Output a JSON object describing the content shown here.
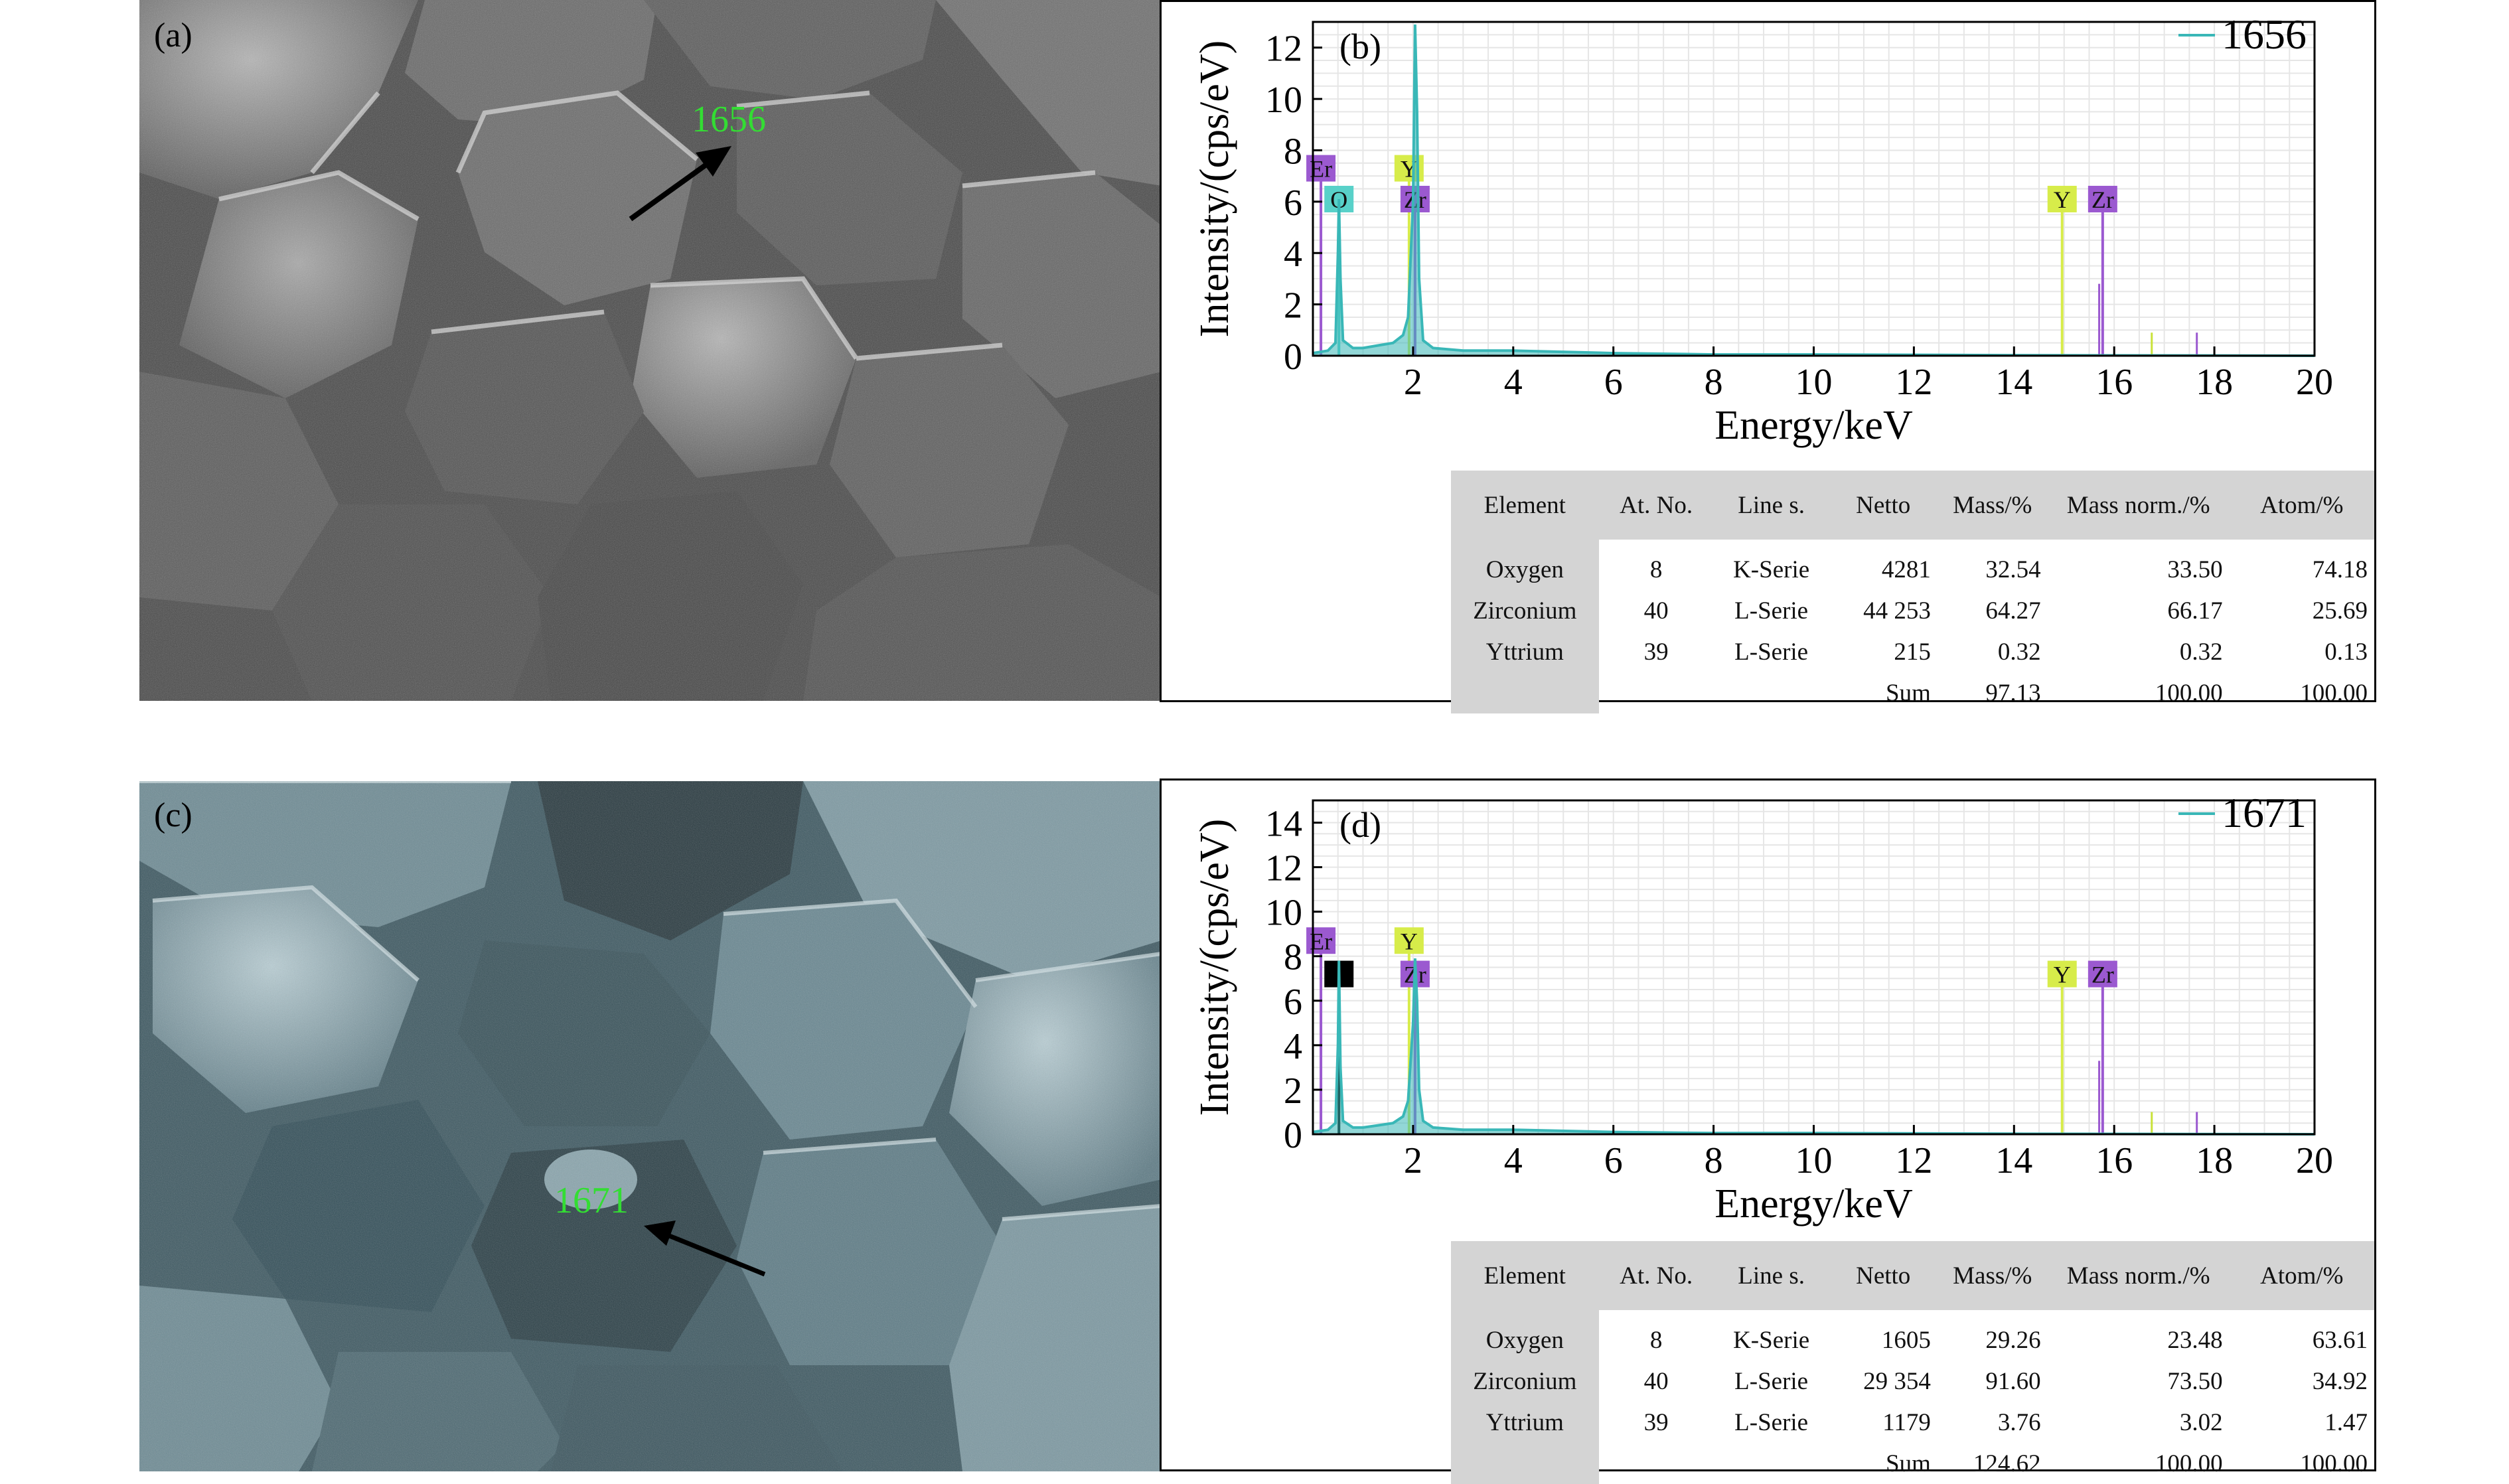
{
  "panels": [
    {
      "sem": {
        "letter": "(a)",
        "spot_label": "1656",
        "label_color": "#33dd33",
        "tint": "gray"
      },
      "eds": {
        "letter": "(b)",
        "legend": "1656",
        "table": {
          "headers": [
            "Element",
            "At. No.",
            "Line s.",
            "Netto",
            "Mass/%",
            "Mass norm./%",
            "Atom/%"
          ],
          "rows": [
            [
              "Oxygen",
              "8",
              "K-Serie",
              "4281",
              "32.54",
              "33.50",
              "74.18"
            ],
            [
              "Zirconium",
              "40",
              "L-Serie",
              "44 253",
              "64.27",
              "66.17",
              "25.69"
            ],
            [
              "Yttrium",
              "39",
              "L-Serie",
              "215",
              "0.32",
              "0.32",
              "0.13"
            ],
            [
              "",
              "",
              "",
              "Sum",
              "97.13",
              "100.00",
              "100.00"
            ]
          ]
        }
      }
    },
    {
      "sem": {
        "letter": "(c)",
        "spot_label": "1671",
        "label_color": "#33dd33",
        "tint": "blue-gray"
      },
      "eds": {
        "letter": "(d)",
        "legend": "1671",
        "table": {
          "headers": [
            "Element",
            "At. No.",
            "Line s.",
            "Netto",
            "Mass/%",
            "Mass norm./%",
            "Atom/%"
          ],
          "rows": [
            [
              "Oxygen",
              "8",
              "K-Serie",
              "1605",
              "29.26",
              "23.48",
              "63.61"
            ],
            [
              "Zirconium",
              "40",
              "L-Serie",
              "29 354",
              "91.60",
              "73.50",
              "34.92"
            ],
            [
              "Yttrium",
              "39",
              "L-Serie",
              "1179",
              "3.76",
              "3.02",
              "1.47"
            ],
            [
              "",
              "",
              "",
              "Sum",
              "124.62",
              "100.00",
              "100.00"
            ]
          ]
        }
      }
    }
  ],
  "chart_data": [
    {
      "type": "line",
      "xlabel": "Energy/keV",
      "ylabel": "Intensity/(cps/eV)",
      "xlim": [
        0,
        20
      ],
      "ylim": [
        0,
        13
      ],
      "xticks": [
        2,
        4,
        6,
        8,
        10,
        12,
        14,
        16,
        18,
        20
      ],
      "yticks": [
        0,
        2,
        4,
        6,
        8,
        10,
        12
      ],
      "series": [
        {
          "name": "1656",
          "color": "#39b7b7",
          "x": [
            0.0,
            0.3,
            0.45,
            0.5,
            0.52,
            0.55,
            0.6,
            0.8,
            1.0,
            1.3,
            1.6,
            1.8,
            1.9,
            2.0,
            2.04,
            2.08,
            2.12,
            2.2,
            2.4,
            3.0,
            4.0,
            6.0,
            8.0,
            10.0,
            14.0,
            20.0
          ],
          "y": [
            0.1,
            0.2,
            0.5,
            4.0,
            6.1,
            3.0,
            0.6,
            0.3,
            0.3,
            0.4,
            0.5,
            0.8,
            1.5,
            6.0,
            12.9,
            9.5,
            3.0,
            0.6,
            0.3,
            0.2,
            0.2,
            0.1,
            0.05,
            0.05,
            0.02,
            0.0
          ]
        }
      ],
      "element_markers": [
        {
          "label": "Er",
          "x": 0.16,
          "y": 7.3,
          "color": "#9b59d0"
        },
        {
          "label": "O",
          "x": 0.52,
          "y": 6.1,
          "color": "#58d1c9"
        },
        {
          "label": "Y",
          "x": 1.92,
          "y": 7.3,
          "color": "#d7ec4a"
        },
        {
          "label": "Zr",
          "x": 2.04,
          "y": 6.1,
          "color": "#9b59d0"
        },
        {
          "label": "Y",
          "x": 14.96,
          "y": 6.1,
          "color": "#d7ec4a"
        },
        {
          "label": "Zr",
          "x": 15.77,
          "y": 6.1,
          "color": "#9b59d0"
        }
      ],
      "reference_lines": [
        {
          "x": 14.96,
          "y": 2.8,
          "color": "#c9e23a"
        },
        {
          "x": 15.7,
          "y": 2.8,
          "color": "#9b59d0"
        },
        {
          "x": 16.75,
          "y": 0.9,
          "color": "#c9e23a"
        },
        {
          "x": 17.65,
          "y": 0.9,
          "color": "#9b59d0"
        }
      ],
      "grid": true,
      "legend": "top-right"
    },
    {
      "type": "line",
      "xlabel": "Energy/keV",
      "ylabel": "Intensity/(cps/eV)",
      "xlim": [
        0,
        20
      ],
      "ylim": [
        0,
        15
      ],
      "xticks": [
        2,
        4,
        6,
        8,
        10,
        12,
        14,
        16,
        18,
        20
      ],
      "yticks": [
        0,
        2,
        4,
        6,
        8,
        10,
        12,
        14
      ],
      "series": [
        {
          "name": "1671",
          "color": "#39b7b7",
          "x": [
            0.0,
            0.3,
            0.45,
            0.5,
            0.52,
            0.55,
            0.6,
            0.8,
            1.0,
            1.3,
            1.6,
            1.8,
            1.9,
            2.0,
            2.04,
            2.08,
            2.12,
            2.2,
            2.4,
            3.0,
            4.0,
            6.0,
            8.0,
            10.0,
            14.0,
            20.0
          ],
          "y": [
            0.1,
            0.2,
            0.5,
            4.0,
            7.8,
            3.0,
            0.6,
            0.3,
            0.3,
            0.4,
            0.5,
            0.8,
            1.5,
            5.0,
            7.9,
            6.0,
            2.0,
            0.6,
            0.3,
            0.2,
            0.2,
            0.1,
            0.05,
            0.05,
            0.02,
            0.0
          ]
        }
      ],
      "element_markers": [
        {
          "label": "Er",
          "x": 0.16,
          "y": 8.7,
          "color": "#9b59d0"
        },
        {
          "label": "",
          "x": 0.52,
          "y": 7.2,
          "color": "#000000"
        },
        {
          "label": "Y",
          "x": 1.92,
          "y": 8.7,
          "color": "#d7ec4a"
        },
        {
          "label": "Zr",
          "x": 2.04,
          "y": 7.2,
          "color": "#9b59d0"
        },
        {
          "label": "Y",
          "x": 14.96,
          "y": 7.2,
          "color": "#d7ec4a"
        },
        {
          "label": "Zr",
          "x": 15.77,
          "y": 7.2,
          "color": "#9b59d0"
        }
      ],
      "reference_lines": [
        {
          "x": 14.96,
          "y": 3.3,
          "color": "#c9e23a"
        },
        {
          "x": 15.7,
          "y": 3.3,
          "color": "#9b59d0"
        },
        {
          "x": 16.75,
          "y": 1.0,
          "color": "#c9e23a"
        },
        {
          "x": 17.65,
          "y": 1.0,
          "color": "#9b59d0"
        }
      ],
      "grid": true,
      "legend": "top-right"
    }
  ]
}
